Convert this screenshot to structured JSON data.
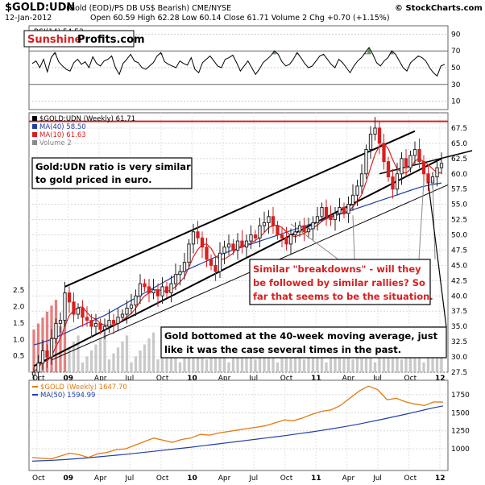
{
  "header": {
    "symbol": "$GOLD:UDN",
    "desc": "(Gold (EOD)/PS DB US$ Bearish)  CME/NYSE",
    "date": "12-Jan-2012",
    "stats": "Open 60.59  High 62.28  Low 60.14  Close 61.71  Volume 2  Chg +0.70 (+1.15%)",
    "watermark": "© StockCharts.com",
    "logo_a": "Sunshine",
    "logo_b": "Profits.com"
  },
  "rsi": {
    "label": "RSI(14) 54.53",
    "ticks": [
      10,
      30,
      50,
      70,
      90
    ],
    "values": [
      55,
      58,
      50,
      60,
      45,
      62,
      68,
      57,
      52,
      48,
      46,
      56,
      60,
      54,
      57,
      50,
      63,
      55,
      52,
      58,
      60,
      64,
      50,
      42,
      55,
      60,
      66,
      58,
      56,
      50,
      48,
      52,
      56,
      64,
      68,
      57,
      54,
      52,
      50,
      58,
      55,
      53,
      62,
      48,
      44,
      56,
      60,
      64,
      58,
      52,
      50,
      60,
      62,
      65,
      56,
      46,
      52,
      58,
      50,
      42,
      48,
      56,
      60,
      64,
      70,
      66,
      57,
      52,
      54,
      60,
      68,
      62,
      55,
      50,
      52,
      58,
      64,
      66,
      60,
      54,
      50,
      60,
      56,
      50,
      44,
      52,
      58,
      62,
      68,
      74,
      66,
      56,
      52,
      58,
      62,
      70,
      66,
      58,
      50,
      46,
      56,
      60,
      64,
      62,
      58,
      50,
      44,
      40,
      52,
      54
    ]
  },
  "main": {
    "legend": [
      {
        "label": "$GOLD:UDN (Weekly) 61.71",
        "color": "#000000"
      },
      {
        "label": "MA(40) 58.50",
        "color": "#1f3fa8"
      },
      {
        "label": "MA(10) 61.63",
        "color": "#d62020"
      },
      {
        "label": "Volume 2",
        "color": "#888888"
      }
    ],
    "yticks": [
      27.5,
      30.0,
      32.5,
      35.0,
      37.5,
      40.0,
      42.5,
      45.0,
      47.5,
      50.0,
      52.5,
      55.0,
      57.5,
      60.0,
      62.5,
      65.0,
      67.5
    ],
    "vol_ticks": [
      0.5,
      1.0,
      1.5,
      2.0,
      2.5
    ],
    "xticks": [
      "Oct",
      "09",
      "Apr",
      "Jul",
      "Oct",
      "10",
      "Apr",
      "Jul",
      "Oct",
      "11",
      "Apr",
      "Jul",
      "Oct",
      "12"
    ],
    "close": [
      27.5,
      29.0,
      31.0,
      30.0,
      33.0,
      35.5,
      36.0,
      40.5,
      39.0,
      37.0,
      38.0,
      36.5,
      36.0,
      35.0,
      35.5,
      34.5,
      35.0,
      36.0,
      35.5,
      36.5,
      37.0,
      38.0,
      38.5,
      40.0,
      42.0,
      41.5,
      40.5,
      41.0,
      40.0,
      41.5,
      40.5,
      42.0,
      43.5,
      44.0,
      45.5,
      48.5,
      50.5,
      49.5,
      48.0,
      46.0,
      45.0,
      44.0,
      47.0,
      48.0,
      48.5,
      47.5,
      49.0,
      48.0,
      49.0,
      50.0,
      49.5,
      51.5,
      52.0,
      53.0,
      51.5,
      50.0,
      49.5,
      48.5,
      50.0,
      50.5,
      51.5,
      50.5,
      51.0,
      52.0,
      53.0,
      54.5,
      53.0,
      52.5,
      53.5,
      54.5,
      53.5,
      55.0,
      56.5,
      58.0,
      60.0,
      64.0,
      66.5,
      67.5,
      65.0,
      62.0,
      59.5,
      57.5,
      60.0,
      62.5,
      61.0,
      63.0,
      64.0,
      62.0,
      60.0,
      58.5,
      59.5,
      61.0,
      61.7
    ],
    "ma40": [
      32.0,
      32.2,
      32.5,
      32.8,
      33.2,
      33.6,
      34.0,
      34.4,
      34.8,
      35.2,
      35.6,
      36.0,
      36.4,
      36.8,
      37.3,
      37.8,
      38.3,
      38.8,
      39.3,
      39.8,
      40.3,
      40.8,
      41.3,
      41.8,
      42.3,
      42.8,
      43.3,
      43.8,
      44.2,
      44.6,
      45.0,
      45.4,
      45.8,
      46.2,
      46.6,
      47.0,
      47.3,
      47.6,
      47.9,
      48.2,
      48.5,
      48.8,
      49.1,
      49.4,
      49.7,
      50.0,
      50.3,
      50.6,
      50.9,
      51.2,
      51.5,
      51.8,
      52.1,
      52.4,
      52.7,
      53.0,
      53.3,
      53.6,
      53.9,
      54.2,
      54.5,
      54.8,
      55.1,
      55.4,
      55.7,
      56.0,
      56.3,
      56.6,
      56.9,
      57.2,
      57.5,
      57.8,
      58.0,
      58.2,
      58.35,
      58.5
    ],
    "annotations": {
      "a1_l1": "Gold:UDN ratio is very similar",
      "a1_l2": "to gold priced in euro.",
      "a2_l1": "Similar \"breakdowns\" - will they",
      "a2_l2": "be followed by similar rallies? So",
      "a2_l3": "far that seems to be the situation.",
      "a3_l1": "Gold bottomed at the 40-week moving average, just",
      "a3_l2": "like it was the case several times in the past."
    }
  },
  "gold": {
    "legend": [
      {
        "label": "$GOLD (Weekly) 1647.70",
        "color": "#e07a10"
      },
      {
        "label": "MA(50) 1594.99",
        "color": "#1f3fa8"
      }
    ],
    "yticks": [
      1000,
      1250,
      1500,
      1750
    ],
    "xticks": [
      "Oct",
      "09",
      "Apr",
      "Jul",
      "Oct",
      "10",
      "Apr",
      "Jul",
      "Oct",
      "11",
      "Apr",
      "Jul",
      "Oct",
      "12"
    ],
    "price": [
      880,
      870,
      860,
      900,
      940,
      920,
      880,
      930,
      950,
      990,
      1000,
      1050,
      1100,
      1150,
      1120,
      1090,
      1130,
      1150,
      1200,
      1190,
      1220,
      1240,
      1260,
      1280,
      1300,
      1320,
      1360,
      1400,
      1390,
      1430,
      1480,
      1520,
      1540,
      1600,
      1700,
      1800,
      1870,
      1820,
      1680,
      1700,
      1650,
      1620,
      1600,
      1650,
      1647.7
    ],
    "ma50": [
      830,
      835,
      840,
      848,
      856,
      866,
      876,
      888,
      900,
      912,
      924,
      938,
      952,
      966,
      980,
      994,
      1008,
      1022,
      1038,
      1054,
      1070,
      1086,
      1102,
      1118,
      1134,
      1150,
      1166,
      1182,
      1200,
      1218,
      1236,
      1256,
      1276,
      1298,
      1320,
      1344,
      1370,
      1396,
      1424,
      1452,
      1480,
      1510,
      1540,
      1570,
      1595
    ]
  },
  "colors": {
    "candle_up": "#222222",
    "candle_down": "#d62020",
    "ma40": "#1f3fa8",
    "ma10": "#d62020",
    "resistance": "#d62020",
    "gold": "#e07a10",
    "rsi_fill": "#3f7a3f",
    "volume": "#bbbbbb",
    "volume_high": "#e06060"
  }
}
